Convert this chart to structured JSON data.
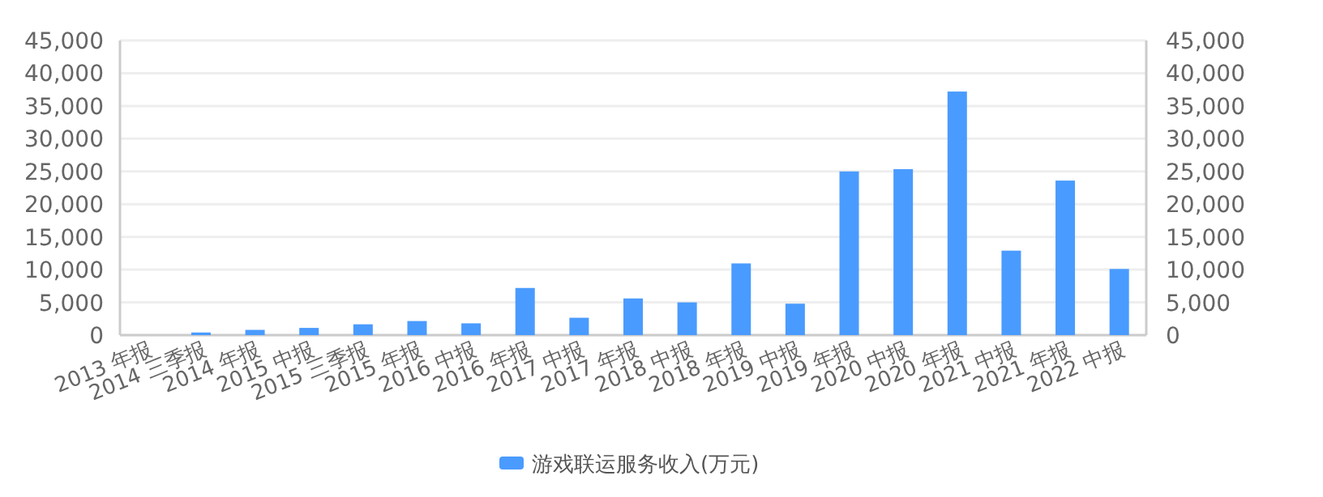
{
  "chart_data": {
    "type": "bar",
    "categories": [
      "2013 年报",
      "2014 三季报",
      "2014 年报",
      "2015 中报",
      "2015 三季报",
      "2015 年报",
      "2016 中报",
      "2016 年报",
      "2017 中报",
      "2017 年报",
      "2018 中报",
      "2018 年报",
      "2019 中报",
      "2019 年报",
      "2020 中报",
      "2020 年报",
      "2021 中报",
      "2021 年报",
      "2022 中报"
    ],
    "series": [
      {
        "name": "游戏联运服务收入(万元)",
        "color": "#4a9bff",
        "values": [
          0,
          400,
          800,
          1100,
          1650,
          2150,
          1800,
          7200,
          2650,
          5600,
          5000,
          10950,
          4800,
          25000,
          25350,
          37200,
          12900,
          23600,
          10100
        ]
      }
    ],
    "ylim": [
      0,
      45000
    ],
    "yticks": [
      {
        "value": 0,
        "label": "0"
      },
      {
        "value": 5000,
        "label": "5,000"
      },
      {
        "value": 10000,
        "label": "10,000"
      },
      {
        "value": 15000,
        "label": "15,000"
      },
      {
        "value": 20000,
        "label": "20,000"
      },
      {
        "value": 25000,
        "label": "25,000"
      },
      {
        "value": 30000,
        "label": "30,000"
      },
      {
        "value": 35000,
        "label": "35,000"
      },
      {
        "value": 40000,
        "label": "40,000"
      },
      {
        "value": 45000,
        "label": "45,000"
      }
    ],
    "y2lim": [
      0,
      45000
    ],
    "y2ticks": [
      {
        "value": 0,
        "label": "0"
      },
      {
        "value": 5000,
        "label": "5,000"
      },
      {
        "value": 10000,
        "label": "10,000"
      },
      {
        "value": 15000,
        "label": "15,000"
      },
      {
        "value": 20000,
        "label": "20,000"
      },
      {
        "value": 25000,
        "label": "25,000"
      },
      {
        "value": 30000,
        "label": "30,000"
      },
      {
        "value": 35000,
        "label": "35,000"
      },
      {
        "value": 40000,
        "label": "40,000"
      },
      {
        "value": 45000,
        "label": "45,000"
      }
    ],
    "grid": "y",
    "legend": "bottom"
  }
}
